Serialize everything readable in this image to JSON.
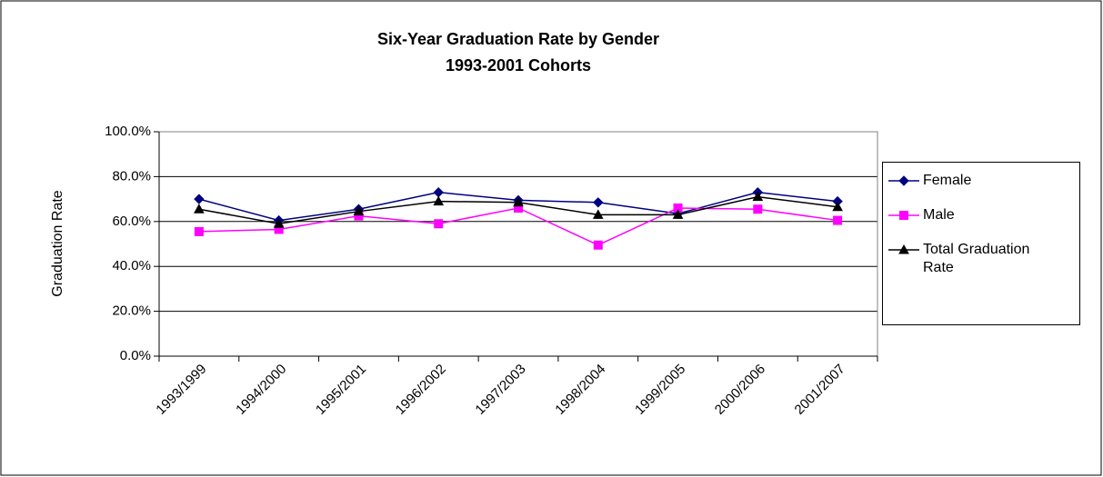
{
  "chart_data": {
    "type": "line",
    "title": "Six-Year Graduation Rate by Gender",
    "subtitle": "1993-2001 Cohorts",
    "y_label": "Graduation Rate",
    "categories": [
      "1993/1999",
      "1994/2000",
      "1995/2001",
      "1996/2002",
      "1997/2003",
      "1998/2004",
      "1999/2005",
      "2000/2006",
      "2001/2007"
    ],
    "series": [
      {
        "name": "Female",
        "color": "#000080",
        "marker": "diamond",
        "values": [
          70.0,
          60.5,
          65.5,
          73.0,
          69.5,
          68.5,
          63.5,
          73.0,
          69.0
        ]
      },
      {
        "name": "Male",
        "color": "#ff00ff",
        "marker": "square",
        "values": [
          55.5,
          56.5,
          62.5,
          59.0,
          66.0,
          49.5,
          66.0,
          65.5,
          60.5
        ]
      },
      {
        "name": "Total Graduation Rate",
        "color": "#000000",
        "marker": "triangle",
        "values": [
          65.5,
          59.0,
          64.5,
          69.0,
          68.5,
          63.0,
          63.0,
          71.0,
          66.5
        ]
      }
    ],
    "ylim": [
      0,
      100
    ],
    "yticks": [
      {
        "value": 0,
        "label": "0.0%"
      },
      {
        "value": 20,
        "label": "20.0%"
      },
      {
        "value": 40,
        "label": "40.0%"
      },
      {
        "value": 60,
        "label": "60.0%"
      },
      {
        "value": 80,
        "label": "80.0%"
      },
      {
        "value": 100,
        "label": "100.0%"
      }
    ],
    "grid": true,
    "legend": "right"
  }
}
